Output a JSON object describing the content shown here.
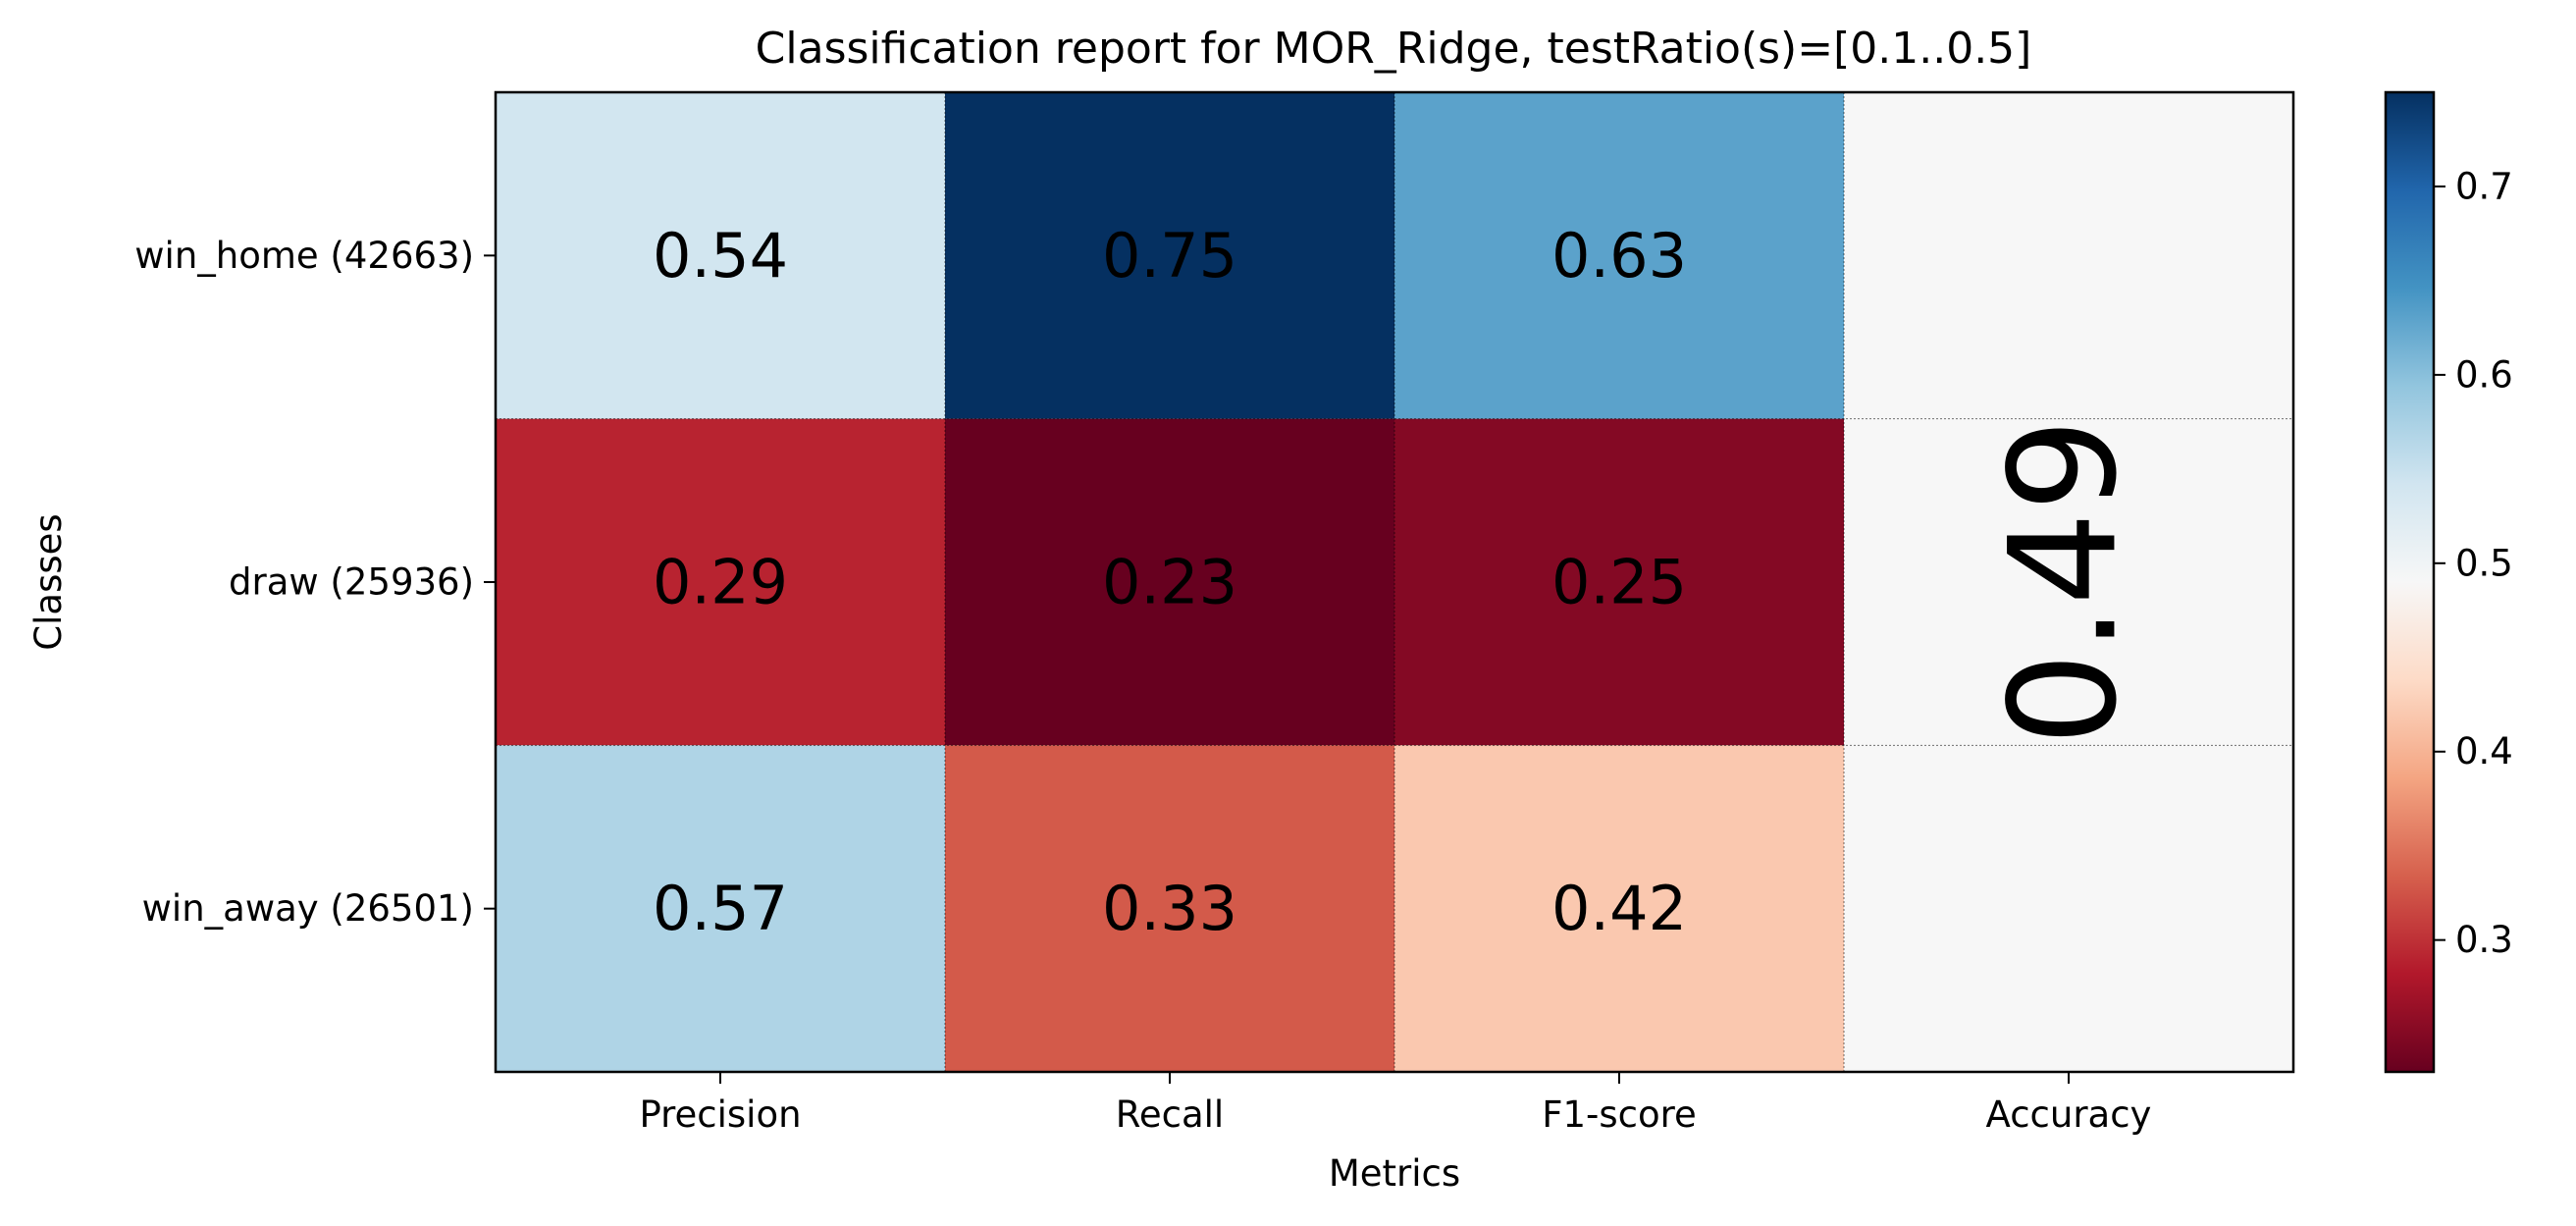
{
  "chart_data": {
    "type": "heatmap",
    "title": "Classification report for MOR_Ridge, testRatio(s)=[0.1..0.5]",
    "xlabel": "Metrics",
    "ylabel": "Classes",
    "columns": [
      "Precision",
      "Recall",
      "F1-score",
      "Accuracy"
    ],
    "rows": [
      "win_home (42663)",
      "draw (25936)",
      "win_away (26501)"
    ],
    "values": [
      [
        0.54,
        0.75,
        0.63
      ],
      [
        0.29,
        0.23,
        0.25
      ],
      [
        0.57,
        0.33,
        0.42
      ]
    ],
    "cell_labels": [
      [
        "0.54",
        "0.75",
        "0.63"
      ],
      [
        "0.29",
        "0.23",
        "0.25"
      ],
      [
        "0.57",
        "0.33",
        "0.42"
      ]
    ],
    "accuracy": 0.49,
    "accuracy_label": "0.49",
    "colormap": "RdBu",
    "colorbar": {
      "vmin": 0.23,
      "vmax": 0.75,
      "ticks": [
        0.3,
        0.4,
        0.5,
        0.6,
        0.7
      ],
      "tick_labels": [
        "0.3",
        "0.4",
        "0.5",
        "0.6",
        "0.7"
      ]
    },
    "grid": false
  }
}
